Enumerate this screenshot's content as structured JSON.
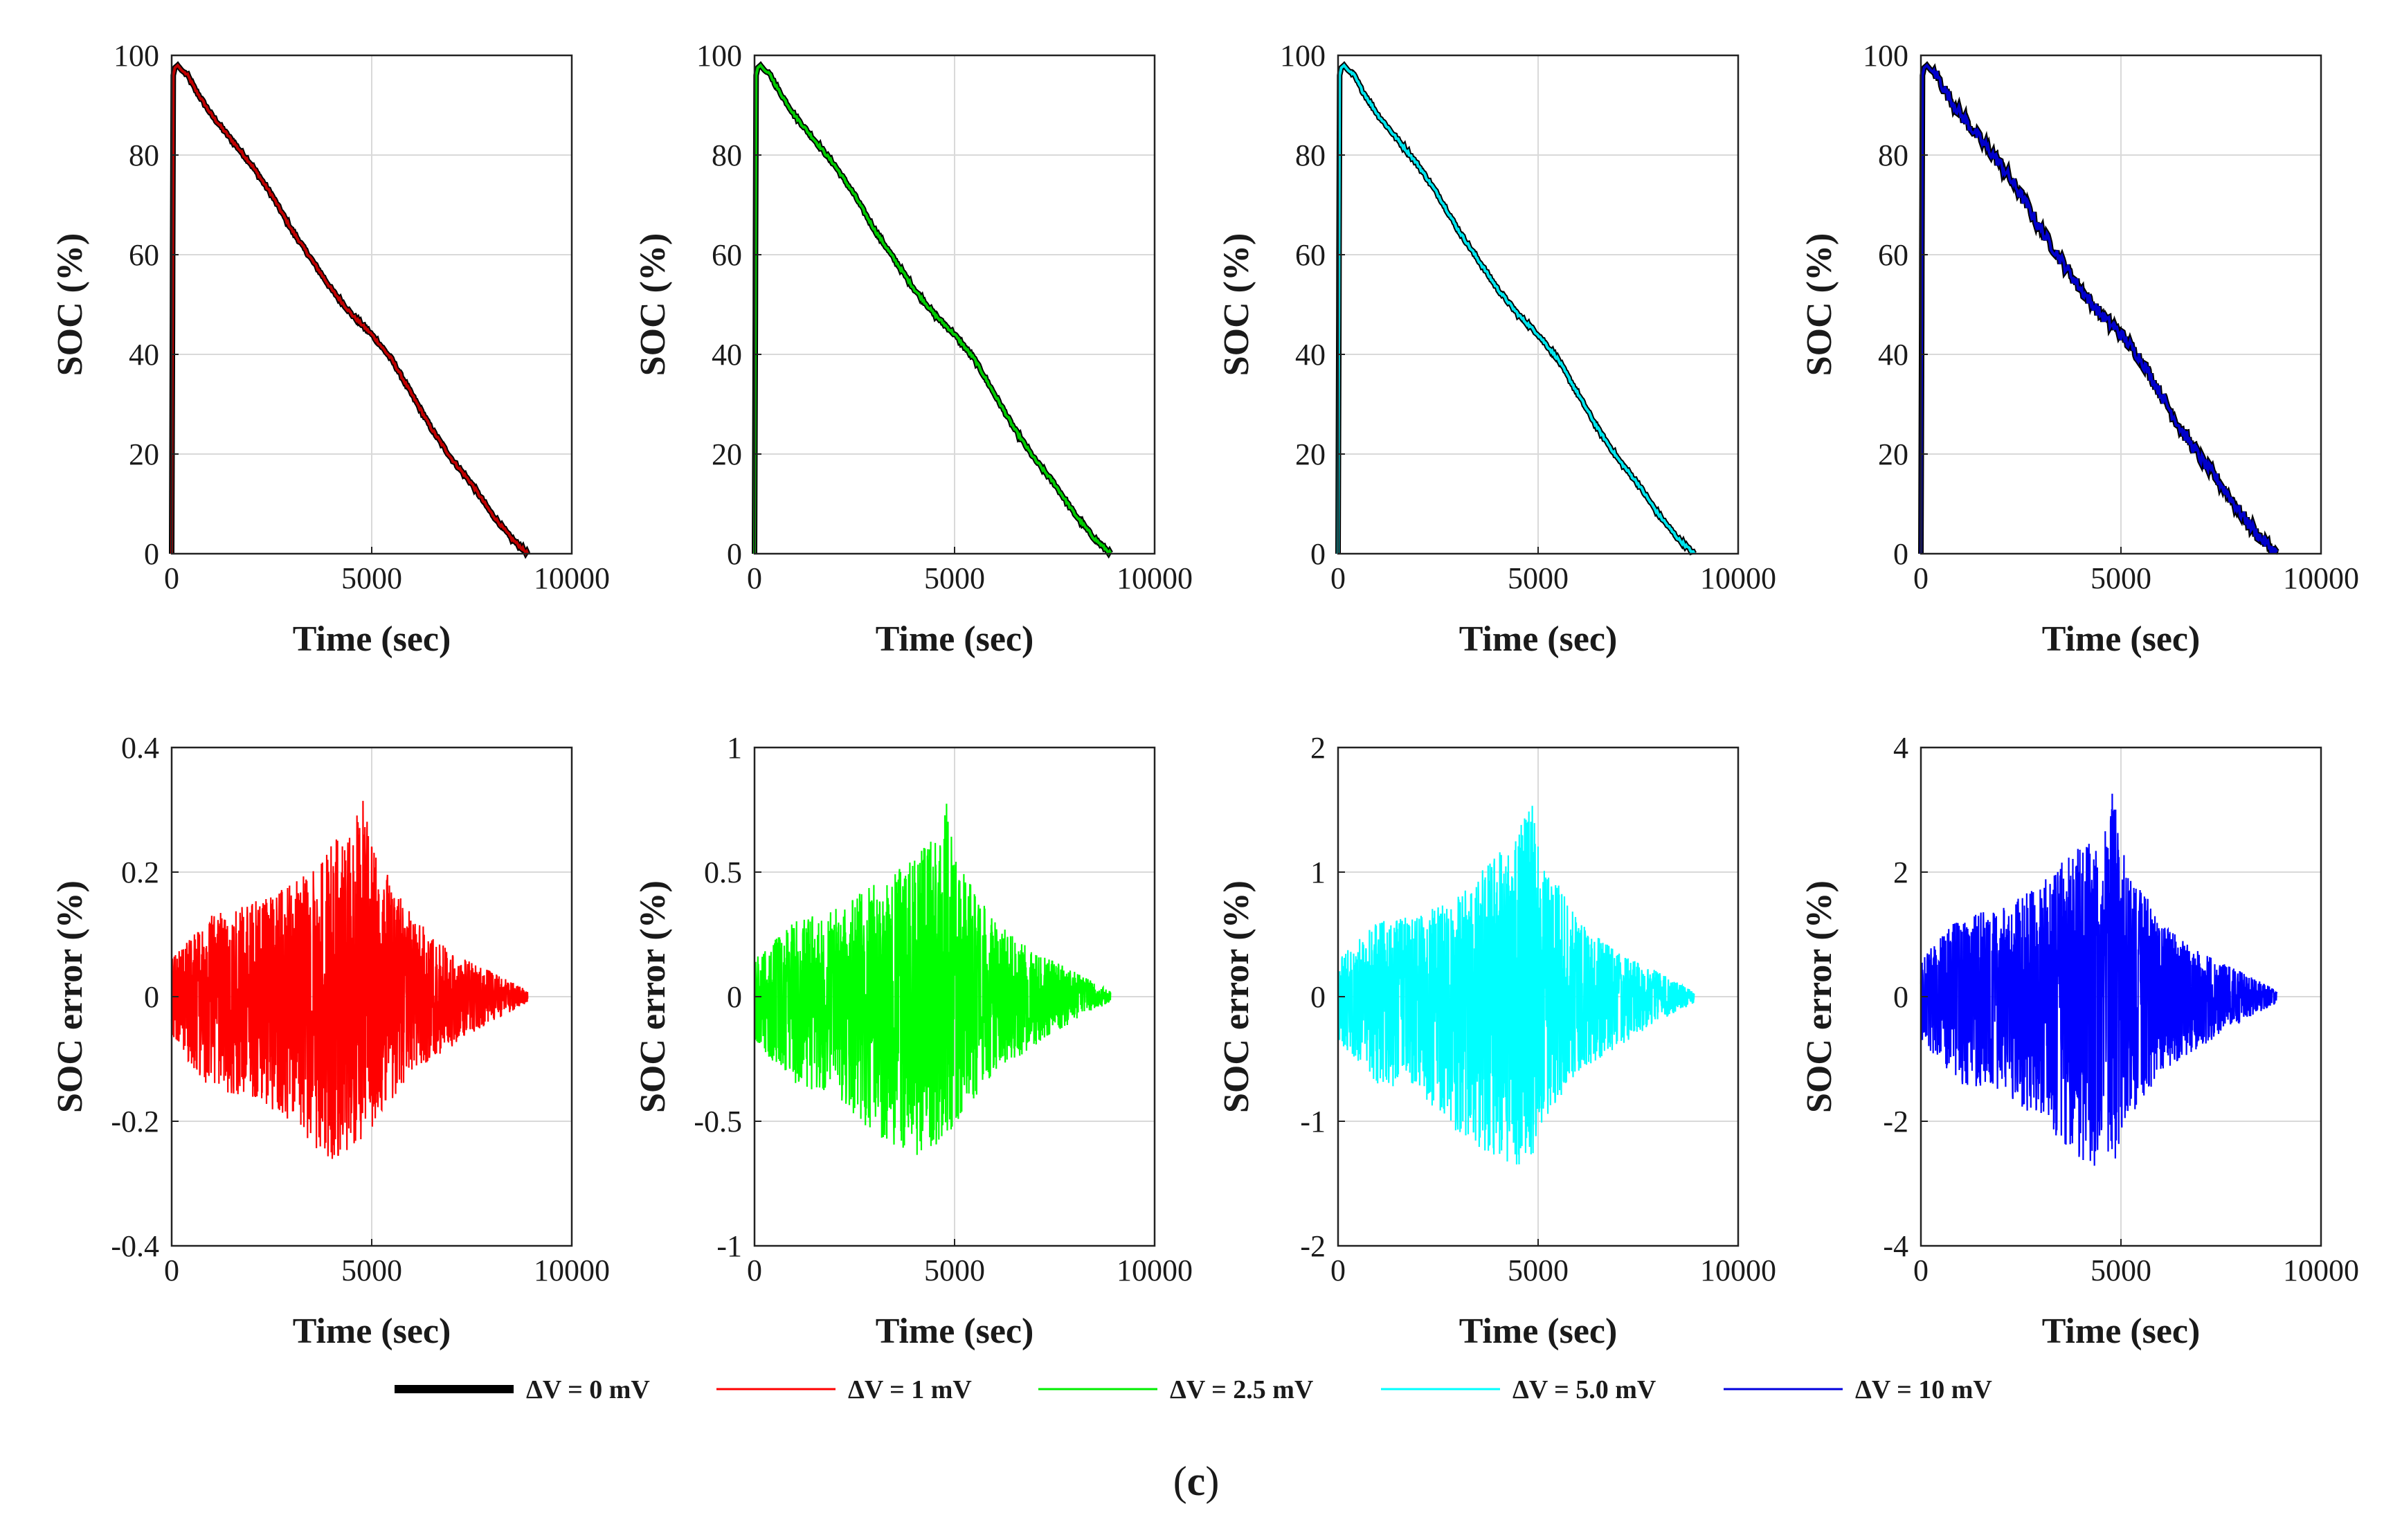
{
  "legend": [
    {
      "label": "ΔV = 0 mV",
      "color": "#000000"
    },
    {
      "label": "ΔV = 1 mV",
      "color": "#ff0000"
    },
    {
      "label": "ΔV = 2.5 mV",
      "color": "#00ee00"
    },
    {
      "label": "ΔV = 5.0 mV",
      "color": "#00ffff"
    },
    {
      "label": "ΔV = 10 mV",
      "color": "#0000dd"
    }
  ],
  "caption": {
    "open": "(",
    "letter": "c",
    "close": ")"
  },
  "chart_data": [
    {
      "type": "line",
      "panel": "soc",
      "color": "#c00000",
      "reference_color": "#000000",
      "xlabel": "Time (sec)",
      "ylabel": "SOC (%)",
      "xlim": [
        0,
        10000
      ],
      "ylim": [
        0,
        100
      ],
      "xticks": [
        0,
        5000,
        10000
      ],
      "xtick_labels": [
        "0",
        "5000",
        "10000"
      ],
      "yticks": [
        0,
        20,
        40,
        60,
        80,
        100
      ],
      "ytick_labels": [
        "0",
        "20",
        "40",
        "60",
        "80",
        "100"
      ],
      "grid": true,
      "x": [
        0,
        40,
        80,
        150,
        250,
        400,
        600,
        1000,
        1500,
        2000,
        2500,
        3000,
        3500,
        4000,
        4500,
        5000,
        5500,
        6000,
        6500,
        7000,
        7500,
        8000,
        8500,
        8900
      ],
      "y": [
        0,
        96,
        97.5,
        98,
        97,
        96,
        93,
        88,
        83,
        78,
        72,
        65,
        59,
        53,
        48,
        44,
        39,
        32,
        25,
        19,
        14,
        8,
        3,
        0
      ]
    },
    {
      "type": "line",
      "panel": "soc",
      "color": "#00cc00",
      "reference_color": "#000000",
      "xlabel": "Time (sec)",
      "ylabel": "SOC (%)",
      "xlim": [
        0,
        10000
      ],
      "ylim": [
        0,
        100
      ],
      "xticks": [
        0,
        5000,
        10000
      ],
      "xtick_labels": [
        "0",
        "5000",
        "10000"
      ],
      "yticks": [
        0,
        20,
        40,
        60,
        80,
        100
      ],
      "ytick_labels": [
        "0",
        "20",
        "40",
        "60",
        "80",
        "100"
      ],
      "grid": true,
      "x": [
        0,
        40,
        80,
        150,
        250,
        400,
        600,
        1000,
        1500,
        2000,
        2500,
        3000,
        3500,
        4000,
        4500,
        5000,
        5500,
        6000,
        6500,
        7000,
        7500,
        8000,
        8500,
        8900
      ],
      "y": [
        0,
        96,
        97.5,
        98,
        97,
        96,
        93,
        88,
        83,
        78,
        72,
        65,
        59,
        53,
        48,
        44,
        39,
        32,
        25,
        19,
        14,
        8,
        3,
        0
      ]
    },
    {
      "type": "line",
      "panel": "soc",
      "color": "#00e5ee",
      "reference_color": "#000000",
      "xlabel": "Time (sec)",
      "ylabel": "SOC (%)",
      "xlim": [
        0,
        10000
      ],
      "ylim": [
        0,
        100
      ],
      "xticks": [
        0,
        5000,
        10000
      ],
      "xtick_labels": [
        "0",
        "5000",
        "10000"
      ],
      "yticks": [
        0,
        20,
        40,
        60,
        80,
        100
      ],
      "ytick_labels": [
        "0",
        "20",
        "40",
        "60",
        "80",
        "100"
      ],
      "grid": true,
      "x": [
        0,
        40,
        80,
        150,
        250,
        400,
        600,
        1000,
        1500,
        2000,
        2500,
        3000,
        3500,
        4000,
        4500,
        5000,
        5500,
        6000,
        6500,
        7000,
        7500,
        8000,
        8500,
        8900
      ],
      "y": [
        0,
        96,
        97.5,
        98,
        97,
        96,
        93,
        88,
        83,
        78,
        72,
        65,
        59,
        53,
        48,
        44,
        39,
        32,
        25,
        19,
        14,
        8,
        3,
        0
      ]
    },
    {
      "type": "line",
      "panel": "soc",
      "color": "#0000cc",
      "reference_color": "#000000",
      "xlabel": "Time (sec)",
      "ylabel": "SOC (%)",
      "xlim": [
        0,
        10000
      ],
      "ylim": [
        0,
        100
      ],
      "xticks": [
        0,
        5000,
        10000
      ],
      "xtick_labels": [
        "0",
        "5000",
        "10000"
      ],
      "yticks": [
        0,
        20,
        40,
        60,
        80,
        100
      ],
      "ytick_labels": [
        "0",
        "20",
        "40",
        "60",
        "80",
        "100"
      ],
      "grid": true,
      "x": [
        0,
        40,
        80,
        150,
        250,
        400,
        600,
        1000,
        1500,
        2000,
        2500,
        3000,
        3500,
        4000,
        4500,
        5000,
        5500,
        6000,
        6500,
        7000,
        7500,
        8000,
        8500,
        8900
      ],
      "y": [
        0,
        96,
        97.5,
        98,
        97,
        96,
        93,
        88,
        83,
        78,
        72,
        65,
        59,
        53,
        48,
        44,
        39,
        32,
        25,
        19,
        14,
        8,
        3,
        0
      ]
    },
    {
      "type": "line",
      "panel": "error",
      "color": "#ff0000",
      "xlabel": "Time (sec)",
      "ylabel": "SOC error (%)",
      "xlim": [
        0,
        10000
      ],
      "ylim": [
        -0.4,
        0.4
      ],
      "xticks": [
        0,
        5000,
        10000
      ],
      "xtick_labels": [
        "0",
        "5000",
        "10000"
      ],
      "yticks": [
        -0.4,
        -0.2,
        0,
        0.2,
        0.4
      ],
      "ytick_labels": [
        "-0.4",
        "-0.2",
        "0",
        "0.2",
        "0.4"
      ],
      "grid": true,
      "x": [
        0,
        1000,
        2000,
        3000,
        4000,
        4500,
        4800,
        5000,
        6000,
        7000,
        8000,
        8900
      ],
      "upper": [
        0.06,
        0.13,
        0.15,
        0.18,
        0.25,
        0.26,
        0.33,
        0.24,
        0.13,
        0.07,
        0.04,
        0.01
      ],
      "lower": [
        -0.07,
        -0.15,
        -0.16,
        -0.2,
        -0.27,
        -0.24,
        -0.24,
        -0.21,
        -0.12,
        -0.08,
        -0.04,
        -0.01
      ]
    },
    {
      "type": "line",
      "panel": "error",
      "color": "#00ff00",
      "xlabel": "Time (sec)",
      "ylabel": "SOC error (%)",
      "xlim": [
        0,
        10000
      ],
      "ylim": [
        -1,
        1
      ],
      "xticks": [
        0,
        5000,
        10000
      ],
      "xtick_labels": [
        "0",
        "5000",
        "10000"
      ],
      "yticks": [
        -1,
        -0.5,
        0,
        0.5,
        1
      ],
      "ytick_labels": [
        "-1",
        "-0.5",
        "0",
        "0.5",
        "1"
      ],
      "grid": true,
      "x": [
        0,
        1000,
        2000,
        3000,
        4000,
        4500,
        4800,
        5000,
        6000,
        7000,
        8000,
        8900
      ],
      "upper": [
        0.15,
        0.3,
        0.35,
        0.45,
        0.55,
        0.65,
        0.78,
        0.55,
        0.3,
        0.18,
        0.1,
        0.02
      ],
      "lower": [
        -0.18,
        -0.35,
        -0.4,
        -0.55,
        -0.64,
        -0.6,
        -0.55,
        -0.52,
        -0.3,
        -0.2,
        -0.1,
        -0.02
      ]
    },
    {
      "type": "line",
      "panel": "error",
      "color": "#00ffff",
      "xlabel": "Time (sec)",
      "ylabel": "SOC error (%)",
      "xlim": [
        0,
        10000
      ],
      "ylim": [
        -2,
        2
      ],
      "xticks": [
        0,
        5000,
        10000
      ],
      "xtick_labels": [
        "0",
        "5000",
        "10000"
      ],
      "yticks": [
        -2,
        -1,
        0,
        1,
        2
      ],
      "ytick_labels": [
        "-2",
        "-1",
        "0",
        "1",
        "2"
      ],
      "grid": true,
      "x": [
        0,
        1000,
        2000,
        3000,
        4000,
        4500,
        4800,
        5000,
        6000,
        7000,
        8000,
        8900
      ],
      "upper": [
        0.3,
        0.6,
        0.65,
        0.8,
        1.15,
        1.3,
        1.7,
        1.2,
        0.6,
        0.35,
        0.2,
        0.05
      ],
      "lower": [
        -0.35,
        -0.7,
        -0.75,
        -1.1,
        -1.3,
        -1.35,
        -1.5,
        -1.05,
        -0.6,
        -0.4,
        -0.2,
        -0.05
      ]
    },
    {
      "type": "line",
      "panel": "error",
      "color": "#0000ff",
      "xlabel": "Time (sec)",
      "ylabel": "SOC error (%)",
      "xlim": [
        0,
        10000
      ],
      "ylim": [
        -4,
        4
      ],
      "xticks": [
        0,
        5000,
        10000
      ],
      "xtick_labels": [
        "0",
        "5000",
        "10000"
      ],
      "yticks": [
        -4,
        -2,
        0,
        2,
        4
      ],
      "ytick_labels": [
        "-4",
        "-2",
        "0",
        "2",
        "4"
      ],
      "grid": true,
      "x": [
        0,
        1000,
        2000,
        3000,
        4000,
        4500,
        4800,
        5000,
        6000,
        7000,
        8000,
        8900
      ],
      "upper": [
        0.6,
        1.3,
        1.4,
        1.8,
        2.5,
        2.6,
        3.3,
        2.4,
        1.2,
        0.7,
        0.4,
        0.1
      ],
      "lower": [
        -0.7,
        -1.4,
        -1.5,
        -2.0,
        -2.6,
        -2.8,
        -2.85,
        -2.2,
        -1.2,
        -0.8,
        -0.4,
        -0.1
      ]
    }
  ]
}
